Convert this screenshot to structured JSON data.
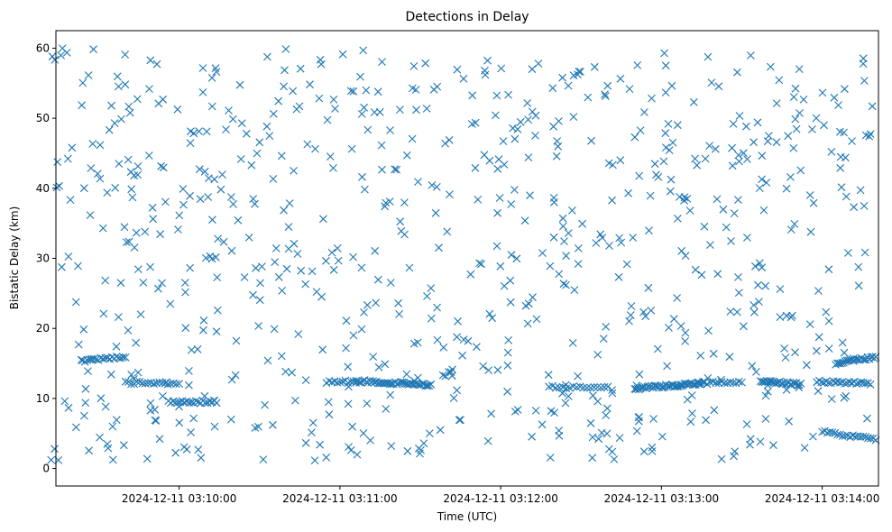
{
  "chart_data": {
    "type": "scatter",
    "title": "Detections in Delay",
    "xlabel": "Time (UTC)",
    "ylabel": "Bistatic Delay (km)",
    "x_start": "2024-12-11 03:09:14",
    "x_end": "2024-12-11 03:14:21",
    "xlim": [
      "2024-12-11 03:09:14",
      "2024-12-11 03:14:21"
    ],
    "ylim": [
      -2.5,
      62.5
    ],
    "xticks": [
      "2024-12-11 03:10:00",
      "2024-12-11 03:11:00",
      "2024-12-11 03:12:00",
      "2024-12-11 03:13:00",
      "2024-12-11 03:14:00"
    ],
    "yticks": [
      0,
      10,
      20,
      30,
      40,
      50,
      60
    ],
    "marker": "x",
    "color": "#1f77b4",
    "grid": false,
    "points_note": "",
    "tracks": [
      {
        "t0": "2024-12-11 03:09:24",
        "t1": "2024-12-11 03:09:40",
        "y0": 15.3,
        "y1": 16.0,
        "n": 20
      },
      {
        "t0": "2024-12-11 03:09:40",
        "t1": "2024-12-11 03:10:00",
        "y0": 12.2,
        "y1": 12.2,
        "n": 20
      },
      {
        "t0": "2024-12-11 03:09:56",
        "t1": "2024-12-11 03:10:14",
        "y0": 9.5,
        "y1": 9.5,
        "n": 22
      },
      {
        "t0": "2024-12-11 03:10:55",
        "t1": "2024-12-11 03:11:06",
        "y0": 12.4,
        "y1": 12.4,
        "n": 12
      },
      {
        "t0": "2024-12-11 03:11:06",
        "t1": "2024-12-11 03:11:34",
        "y0": 12.5,
        "y1": 11.9,
        "n": 45
      },
      {
        "t0": "2024-12-11 03:12:18",
        "t1": "2024-12-11 03:12:40",
        "y0": 11.6,
        "y1": 11.6,
        "n": 18
      },
      {
        "t0": "2024-12-11 03:12:50",
        "t1": "2024-12-11 03:13:16",
        "y0": 11.4,
        "y1": 12.2,
        "n": 50
      },
      {
        "t0": "2024-12-11 03:13:16",
        "t1": "2024-12-11 03:13:30",
        "y0": 12.2,
        "y1": 12.4,
        "n": 14
      },
      {
        "t0": "2024-12-11 03:13:37",
        "t1": "2024-12-11 03:13:52",
        "y0": 12.5,
        "y1": 12.0,
        "n": 28
      },
      {
        "t0": "2024-12-11 03:13:58",
        "t1": "2024-12-11 03:14:18",
        "y0": 12.4,
        "y1": 12.1,
        "n": 24
      },
      {
        "t0": "2024-12-11 03:14:05",
        "t1": "2024-12-11 03:14:20",
        "y0": 15.0,
        "y1": 15.9,
        "n": 26
      },
      {
        "t0": "2024-12-11 03:14:00",
        "t1": "2024-12-11 03:14:20",
        "y0": 5.3,
        "y1": 4.1,
        "n": 22
      }
    ],
    "noise_count": 760
  }
}
